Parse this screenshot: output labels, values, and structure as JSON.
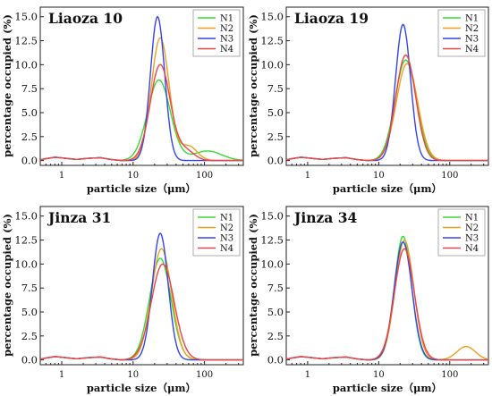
{
  "chart_data": [
    {
      "type": "line",
      "title": "Liaoza 10",
      "xlabel": "particle size（μm）",
      "ylabel": "percentage occupied (%)",
      "x_scale": "log",
      "xlim": [
        0.5,
        350
      ],
      "ylim": [
        -0.5,
        16
      ],
      "x_ticks": [
        1,
        10,
        100
      ],
      "y_ticks": [
        "0.0",
        "2.5",
        "5.0",
        "7.5",
        "10.0",
        "12.5",
        "15.0"
      ],
      "legend_position": "top-right",
      "series": [
        {
          "name": "N1",
          "color": "#33dd33",
          "peak": {
            "x": 23,
            "y": 8.4,
            "sigma": 0.16
          },
          "tail": {
            "x": 110,
            "y": 1.0,
            "sigma": 0.2
          }
        },
        {
          "name": "N2",
          "color": "#f0a020",
          "peak": {
            "x": 24,
            "y": 12.8,
            "sigma": 0.125
          },
          "tail": {
            "x": 60,
            "y": 1.5,
            "sigma": 0.12
          }
        },
        {
          "name": "N3",
          "color": "#3344ee",
          "peak": {
            "x": 22,
            "y": 15.0,
            "sigma": 0.1
          },
          "tail": null
        },
        {
          "name": "N4",
          "color": "#ee4444",
          "peak": {
            "x": 24,
            "y": 10.0,
            "sigma": 0.14
          },
          "tail": {
            "x": 55,
            "y": 1.0,
            "sigma": 0.12
          }
        }
      ],
      "baseline": {
        "x": [
          0.5,
          0.8,
          1.0,
          1.6,
          2.5,
          3.5,
          5,
          7,
          9
        ],
        "y": [
          0.1,
          0.35,
          0.28,
          0.12,
          0.25,
          0.3,
          0.1,
          0.0,
          0.0
        ]
      }
    },
    {
      "type": "line",
      "title": "Liaoza 19",
      "xlabel": "particle size（μm）",
      "ylabel": "percentage occupied (%)",
      "x_scale": "log",
      "xlim": [
        0.5,
        350
      ],
      "ylim": [
        -0.5,
        16
      ],
      "x_ticks": [
        1,
        10,
        100
      ],
      "y_ticks": [
        "0.0",
        "2.5",
        "5.0",
        "7.5",
        "10.0",
        "12.5",
        "15.0"
      ],
      "legend_position": "top-right",
      "series": [
        {
          "name": "N1",
          "color": "#33dd33",
          "peak": {
            "x": 24,
            "y": 10.5,
            "sigma": 0.15
          },
          "tail": null
        },
        {
          "name": "N2",
          "color": "#f0a020",
          "peak": {
            "x": 25,
            "y": 10.1,
            "sigma": 0.15
          },
          "tail": null
        },
        {
          "name": "N3",
          "color": "#3344ee",
          "peak": {
            "x": 22,
            "y": 14.2,
            "sigma": 0.105
          },
          "tail": null
        },
        {
          "name": "N4",
          "color": "#ee4444",
          "peak": {
            "x": 24,
            "y": 11.0,
            "sigma": 0.14
          },
          "tail": null
        }
      ],
      "baseline": {
        "x": [
          0.5,
          0.8,
          1.0,
          1.6,
          2.5,
          3.5,
          5,
          7,
          9
        ],
        "y": [
          0.1,
          0.35,
          0.28,
          0.12,
          0.25,
          0.3,
          0.1,
          0.0,
          0.0
        ]
      }
    },
    {
      "type": "line",
      "title": "Jinza 31",
      "xlabel": "particle size（μm）",
      "ylabel": "percentage occupied (%)",
      "x_scale": "log",
      "xlim": [
        0.5,
        350
      ],
      "ylim": [
        -0.5,
        16
      ],
      "x_ticks": [
        1,
        10,
        100
      ],
      "y_ticks": [
        "0.0",
        "2.5",
        "5.0",
        "7.5",
        "10.0",
        "12.5",
        "15.0"
      ],
      "legend_position": "top-right",
      "series": [
        {
          "name": "N1",
          "color": "#33dd33",
          "peak": {
            "x": 24,
            "y": 10.6,
            "sigma": 0.15
          },
          "tail": null
        },
        {
          "name": "N2",
          "color": "#f0a020",
          "peak": {
            "x": 25,
            "y": 11.6,
            "sigma": 0.14
          },
          "tail": null
        },
        {
          "name": "N3",
          "color": "#3344ee",
          "peak": {
            "x": 24,
            "y": 13.2,
            "sigma": 0.11
          },
          "tail": null
        },
        {
          "name": "N4",
          "color": "#ee4444",
          "peak": {
            "x": 26,
            "y": 10.0,
            "sigma": 0.16
          },
          "tail": null
        }
      ],
      "baseline": {
        "x": [
          0.5,
          0.8,
          1.0,
          1.6,
          2.5,
          3.5,
          5,
          7,
          9
        ],
        "y": [
          0.1,
          0.35,
          0.28,
          0.12,
          0.25,
          0.3,
          0.1,
          0.0,
          0.0
        ]
      }
    },
    {
      "type": "line",
      "title": "Jinza 34",
      "xlabel": "particle size（μm）",
      "ylabel": "percentage occupied (%)",
      "x_scale": "log",
      "xlim": [
        0.5,
        350
      ],
      "ylim": [
        -0.5,
        16
      ],
      "x_ticks": [
        1,
        10,
        100
      ],
      "y_ticks": [
        "0.0",
        "2.5",
        "5.0",
        "7.5",
        "10.0",
        "12.5",
        "15.0"
      ],
      "legend_position": "top-right",
      "series": [
        {
          "name": "N1",
          "color": "#33dd33",
          "peak": {
            "x": 22,
            "y": 12.9,
            "sigma": 0.12
          },
          "tail": null
        },
        {
          "name": "N2",
          "color": "#f0a020",
          "peak": {
            "x": 23,
            "y": 12.5,
            "sigma": 0.13
          },
          "tail": {
            "x": 170,
            "y": 1.4,
            "sigma": 0.13
          }
        },
        {
          "name": "N3",
          "color": "#3344ee",
          "peak": {
            "x": 22,
            "y": 12.3,
            "sigma": 0.125
          },
          "tail": null
        },
        {
          "name": "N4",
          "color": "#ee4444",
          "peak": {
            "x": 23,
            "y": 11.6,
            "sigma": 0.14
          },
          "tail": null
        }
      ],
      "baseline": {
        "x": [
          0.5,
          0.8,
          1.0,
          1.6,
          2.5,
          3.5,
          5,
          7,
          9
        ],
        "y": [
          0.1,
          0.35,
          0.28,
          0.12,
          0.25,
          0.3,
          0.1,
          0.0,
          0.0
        ]
      }
    }
  ]
}
